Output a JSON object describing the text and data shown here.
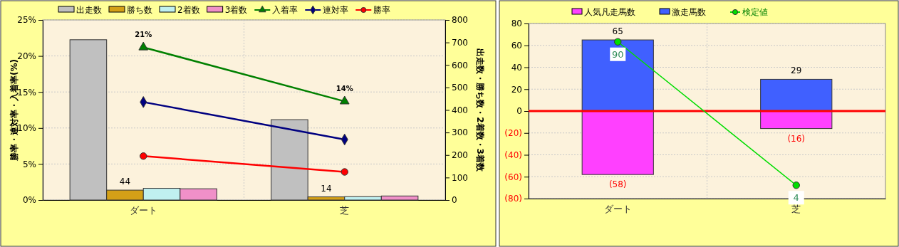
{
  "chart_data": [
    {
      "type": "bar",
      "categories": [
        "ダート",
        "芝"
      ],
      "ylabel": "勝率・連対率・入着率(%)",
      "y2label": "出走数・勝ち数・2着数・3着数",
      "ylim": [
        0,
        25
      ],
      "yticks": [
        {
          "value": 0,
          "label": "0%"
        },
        {
          "value": 5,
          "label": "5%"
        },
        {
          "value": 10,
          "label": "10%"
        },
        {
          "value": 15,
          "label": "15%"
        },
        {
          "value": 20,
          "label": "20%"
        },
        {
          "value": 25,
          "label": "25%"
        }
      ],
      "y2lim": [
        0,
        800
      ],
      "y2ticks": [
        0,
        100,
        200,
        300,
        400,
        500,
        600,
        700,
        800
      ],
      "grid": true,
      "legend": "top",
      "series": [
        {
          "name": "出走数",
          "axis": "y2",
          "color": "#c0c0c0",
          "values": [
            712,
            357
          ]
        },
        {
          "name": "勝ち数",
          "axis": "y2",
          "color": "#d4a017",
          "values": [
            44,
            14
          ],
          "value_labels": [
            "44",
            "14"
          ]
        },
        {
          "name": "2着数",
          "axis": "y2",
          "color": "#c0f0f0",
          "values": [
            52,
            15
          ]
        },
        {
          "name": "3着数",
          "axis": "y2",
          "color": "#f090c8",
          "values": [
            50,
            18
          ]
        },
        {
          "name": "入着率",
          "type": "line",
          "color": "#008000",
          "marker": "triangle",
          "values": [
            21.2,
            13.7
          ],
          "value_labels": [
            "21%",
            "14%"
          ]
        },
        {
          "name": "連対率",
          "type": "line",
          "color": "#000080",
          "marker": "diamond",
          "values": [
            13.6,
            8.4
          ]
        },
        {
          "name": "勝率",
          "type": "line",
          "color": "#ff0000",
          "marker": "circle",
          "values": [
            6.1,
            3.9
          ]
        }
      ]
    },
    {
      "type": "bar",
      "stacked": true,
      "categories": [
        "ダート",
        "芝"
      ],
      "ylim": [
        -80,
        80
      ],
      "yticks": [
        {
          "value": -80,
          "label": "(80)"
        },
        {
          "value": -60,
          "label": "(60)"
        },
        {
          "value": -40,
          "label": "(40)"
        },
        {
          "value": -20,
          "label": "(20)"
        },
        0,
        20,
        40,
        60,
        80
      ],
      "y2lim": [
        -4,
        101
      ],
      "grid": true,
      "legend": "top",
      "ref_lines": [
        {
          "axis": "y",
          "value": 0,
          "color": "#ff0000"
        }
      ],
      "series": [
        {
          "name": "人気凡走馬数",
          "color": "#ff40ff",
          "values": [
            -58,
            -16
          ],
          "value_labels": [
            "(58)",
            "(16)"
          ]
        },
        {
          "name": "激走馬数",
          "color": "#4060ff",
          "values": [
            65,
            29
          ],
          "value_labels": [
            "65",
            "29"
          ]
        },
        {
          "name": "検定値",
          "type": "line",
          "axis": "y2",
          "color": "#00dd00",
          "marker": "circle",
          "values": [
            90,
            4
          ],
          "value_labels": [
            "90",
            "4"
          ]
        }
      ]
    }
  ]
}
